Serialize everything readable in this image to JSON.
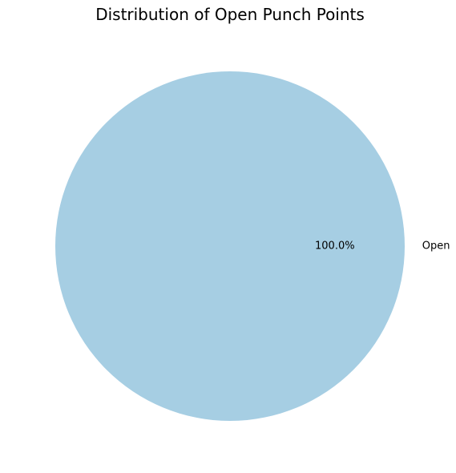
{
  "chart_data": {
    "type": "pie",
    "title": "Distribution of Open Punch Points",
    "slices": [
      {
        "label": "Open",
        "value": 100,
        "pct_label": "100.0%",
        "color": "#a6cee3"
      }
    ]
  }
}
